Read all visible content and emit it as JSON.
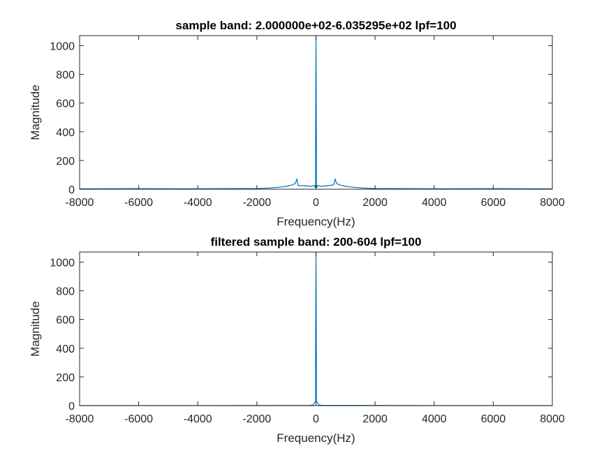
{
  "chart_data": [
    {
      "type": "line",
      "title": "sample band: 2.000000e+02-6.035295e+02 lpf=100",
      "xlabel": "Frequency(Hz)",
      "ylabel": "Magnitude",
      "xlim": [
        -8000,
        8000
      ],
      "ylim": [
        0,
        1070
      ],
      "xticks": [
        -8000,
        -6000,
        -4000,
        -2000,
        0,
        2000,
        4000,
        6000,
        8000
      ],
      "yticks": [
        0,
        200,
        400,
        600,
        800,
        1000
      ],
      "xtick_labels": [
        "-8000",
        "-6000",
        "-4000",
        "-2000",
        "0",
        "2000",
        "4000",
        "6000",
        "8000"
      ],
      "ytick_labels": [
        "0",
        "200",
        "400",
        "600",
        "800",
        "1000"
      ],
      "grid": false,
      "line_color": "#0072BD",
      "series": [
        {
          "x": [
            -8000,
            -6000,
            -4000,
            -2000,
            -1600,
            -1200,
            -1000,
            -800,
            -700,
            -650,
            -600,
            -400,
            -200,
            -50,
            -20,
            0,
            20,
            50,
            200,
            400,
            600,
            650,
            700,
            800,
            1000,
            1200,
            1600,
            2000,
            4000,
            6000,
            8000
          ],
          "y": [
            3,
            4,
            3,
            5,
            8,
            15,
            20,
            30,
            40,
            70,
            25,
            25,
            20,
            25,
            10,
            1070,
            10,
            25,
            20,
            25,
            30,
            70,
            40,
            30,
            20,
            15,
            8,
            5,
            3,
            4,
            3
          ]
        }
      ]
    },
    {
      "type": "line",
      "title": "filtered sample band: 200-604 lpf=100",
      "xlabel": "Frequency(Hz)",
      "ylabel": "Magnitude",
      "xlim": [
        -8000,
        8000
      ],
      "ylim": [
        0,
        1070
      ],
      "xticks": [
        -8000,
        -6000,
        -4000,
        -2000,
        0,
        2000,
        4000,
        6000,
        8000
      ],
      "yticks": [
        0,
        200,
        400,
        600,
        800,
        1000
      ],
      "xtick_labels": [
        "-8000",
        "-6000",
        "-4000",
        "-2000",
        "0",
        "2000",
        "4000",
        "6000",
        "8000"
      ],
      "ytick_labels": [
        "0",
        "200",
        "400",
        "600",
        "800",
        "1000"
      ],
      "grid": false,
      "line_color": "#0072BD",
      "series": [
        {
          "x": [
            -8000,
            -4000,
            -200,
            -100,
            -50,
            -20,
            0,
            20,
            50,
            100,
            200,
            4000,
            8000
          ],
          "y": [
            1,
            1,
            2,
            5,
            20,
            30,
            1070,
            30,
            20,
            5,
            2,
            1,
            1
          ]
        }
      ]
    }
  ]
}
